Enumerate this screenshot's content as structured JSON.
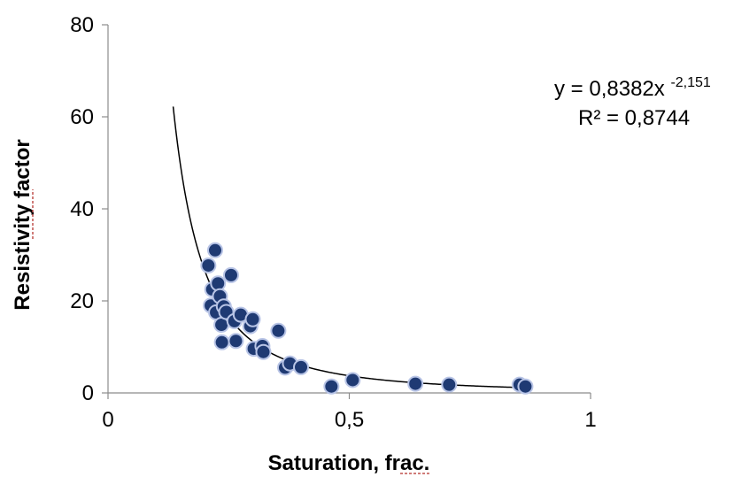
{
  "chart_data": {
    "type": "scatter",
    "title": "",
    "xlabel": "Saturation, frac.",
    "ylabel": "Resistivity factor",
    "xlim": [
      0,
      1
    ],
    "ylim": [
      0,
      80
    ],
    "x_ticks": [
      0,
      0.5,
      1
    ],
    "x_tick_labels": [
      "0",
      "0,5",
      "1"
    ],
    "y_ticks": [
      0,
      20,
      40,
      60,
      80
    ],
    "y_tick_labels": [
      "0",
      "20",
      "40",
      "60",
      "80"
    ],
    "grid": false,
    "legend": "none",
    "marker_color": "#1f3a73",
    "marker_edge_color": "#b8c4e6",
    "trend_color": "#000000",
    "points": [
      {
        "x": 0.208,
        "y": 27.7
      },
      {
        "x": 0.213,
        "y": 19.0
      },
      {
        "x": 0.216,
        "y": 22.5
      },
      {
        "x": 0.222,
        "y": 31.0
      },
      {
        "x": 0.224,
        "y": 17.5
      },
      {
        "x": 0.228,
        "y": 23.8
      },
      {
        "x": 0.232,
        "y": 21.0
      },
      {
        "x": 0.235,
        "y": 14.8
      },
      {
        "x": 0.236,
        "y": 11.0
      },
      {
        "x": 0.24,
        "y": 18.8
      },
      {
        "x": 0.245,
        "y": 17.6
      },
      {
        "x": 0.255,
        "y": 25.6
      },
      {
        "x": 0.262,
        "y": 15.6
      },
      {
        "x": 0.265,
        "y": 11.3
      },
      {
        "x": 0.275,
        "y": 17.0
      },
      {
        "x": 0.295,
        "y": 14.5
      },
      {
        "x": 0.3,
        "y": 16.0
      },
      {
        "x": 0.302,
        "y": 9.6
      },
      {
        "x": 0.32,
        "y": 10.2
      },
      {
        "x": 0.322,
        "y": 8.9
      },
      {
        "x": 0.353,
        "y": 13.5
      },
      {
        "x": 0.367,
        "y": 5.5
      },
      {
        "x": 0.377,
        "y": 6.4
      },
      {
        "x": 0.4,
        "y": 5.6
      },
      {
        "x": 0.463,
        "y": 1.4
      },
      {
        "x": 0.507,
        "y": 2.8
      },
      {
        "x": 0.637,
        "y": 2.0
      },
      {
        "x": 0.707,
        "y": 1.8
      },
      {
        "x": 0.853,
        "y": 1.8
      },
      {
        "x": 0.865,
        "y": 1.4
      }
    ],
    "trendline": {
      "type": "power",
      "coefficient": 0.8382,
      "exponent": -2.151,
      "x_range": [
        0.135,
        0.87
      ]
    },
    "annotation": {
      "equation_prefix": "y = 0,8382x",
      "equation_exponent": "-2,151",
      "r_squared": "R² = 0,8744"
    }
  }
}
